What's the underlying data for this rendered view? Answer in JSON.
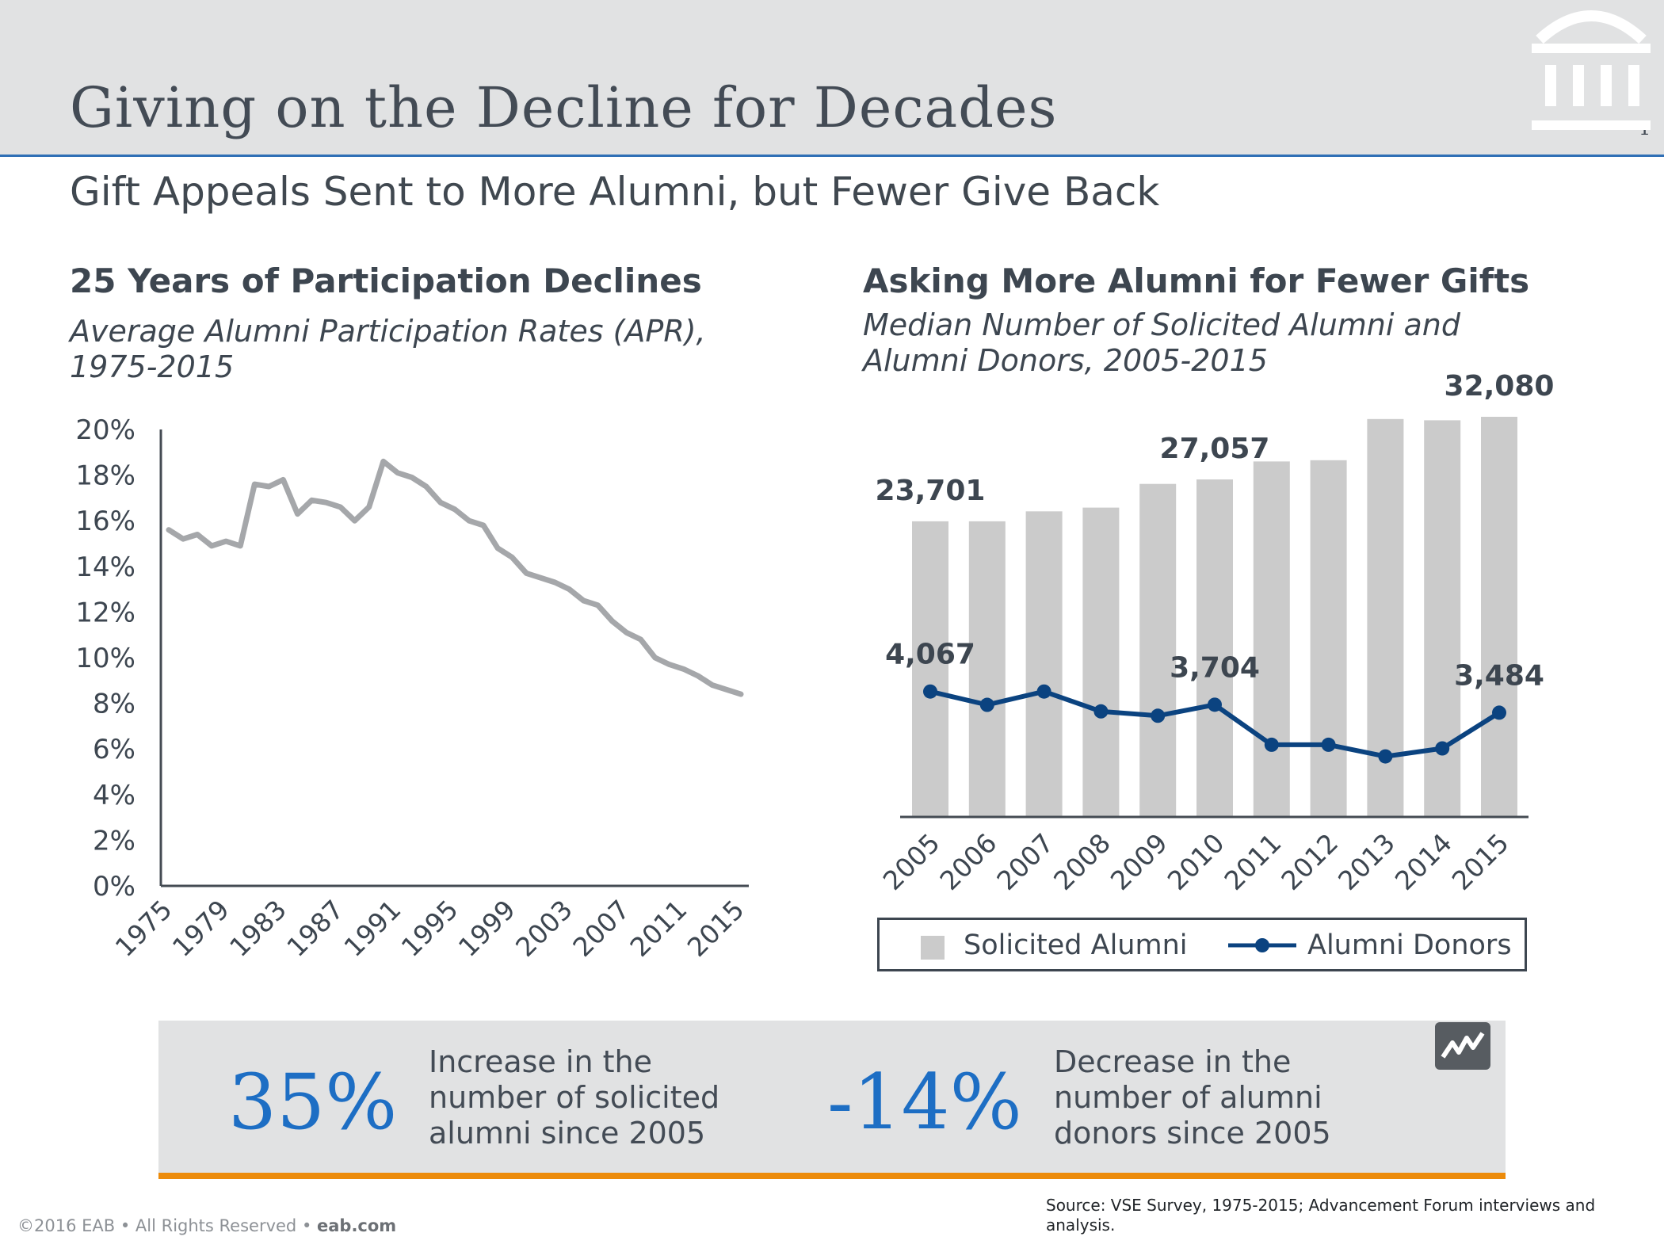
{
  "header": {
    "title": "Giving on the Decline for Decades",
    "page_number": "1",
    "subtitle": "Gift Appeals Sent to More Alumni, but Fewer Give Back"
  },
  "colors": {
    "accent_blue": "#1d6ec4",
    "navy": "#0b4380",
    "gray_bar": "#cbcbcb",
    "line_gray": "#a5a7aa",
    "orange": "#ec8b0b"
  },
  "chart_data": [
    {
      "type": "line",
      "title": "25 Years of Participation Declines",
      "subtitle": "Average Alumni Participation Rates (APR), 1975-2015",
      "xlabel": "",
      "ylabel": "",
      "ylim": [
        0,
        20
      ],
      "y_ticks": [
        "0%",
        "2%",
        "4%",
        "6%",
        "8%",
        "10%",
        "12%",
        "14%",
        "16%",
        "18%",
        "20%"
      ],
      "x_tick_labels": [
        "1975",
        "1979",
        "1983",
        "1987",
        "1991",
        "1995",
        "1999",
        "2003",
        "2007",
        "2011",
        "2015"
      ],
      "x": [
        1975,
        1976,
        1977,
        1978,
        1979,
        1980,
        1981,
        1982,
        1983,
        1984,
        1985,
        1986,
        1987,
        1988,
        1989,
        1990,
        1991,
        1992,
        1993,
        1994,
        1995,
        1996,
        1997,
        1998,
        1999,
        2000,
        2001,
        2002,
        2003,
        2004,
        2005,
        2006,
        2007,
        2008,
        2009,
        2010,
        2011,
        2012,
        2013,
        2014,
        2015
      ],
      "series": [
        {
          "name": "APR",
          "values": [
            15.6,
            15.2,
            15.4,
            14.9,
            15.1,
            14.9,
            17.6,
            17.5,
            17.8,
            16.3,
            16.9,
            16.8,
            16.6,
            16.0,
            16.6,
            18.6,
            18.1,
            17.9,
            17.5,
            16.8,
            16.5,
            16.0,
            15.8,
            14.8,
            14.4,
            13.7,
            13.5,
            13.3,
            13.0,
            12.5,
            12.3,
            11.6,
            11.1,
            10.8,
            10.0,
            9.7,
            9.5,
            9.2,
            8.8,
            8.6,
            8.4
          ]
        }
      ]
    },
    {
      "type": "bar",
      "title": "Asking More Alumni for Fewer Gifts",
      "subtitle": "Median Number of Solicited Alumni and Alumni Donors, 2005-2015",
      "categories": [
        "2005",
        "2006",
        "2007",
        "2008",
        "2009",
        "2010",
        "2011",
        "2012",
        "2013",
        "2014",
        "2015"
      ],
      "ylim": [
        0,
        34000
      ],
      "series": [
        {
          "name": "Solicited Alumni",
          "type": "bar",
          "values": [
            23701,
            23700,
            24500,
            24800,
            26700,
            27057,
            28500,
            28600,
            31900,
            31800,
            32080
          ],
          "labels": {
            "0": "23,701",
            "5": "27,057",
            "10": "32,080"
          }
        },
        {
          "name": "Alumni Donors",
          "type": "line",
          "values": [
            4067,
            3700,
            4067,
            3520,
            3400,
            3704,
            2600,
            2600,
            2280,
            2500,
            3484
          ],
          "labels": {
            "0": "4,067",
            "5": "3,704",
            "10": "3,484"
          }
        }
      ],
      "legend": [
        "Solicited Alumni",
        "Alumni Donors"
      ],
      "legend_position": "bottom"
    }
  ],
  "stats": [
    {
      "value": "35%",
      "text": "Increase in the number of solicited alumni since 2005"
    },
    {
      "value": "-14%",
      "text": "Decrease in the number of alumni donors since 2005"
    }
  ],
  "footer": {
    "copyright": "©2016 EAB • All Rights Reserved • ",
    "site": "eab.com",
    "source": "Source: VSE Survey, 1975-2015; Advancement Forum interviews and analysis."
  }
}
